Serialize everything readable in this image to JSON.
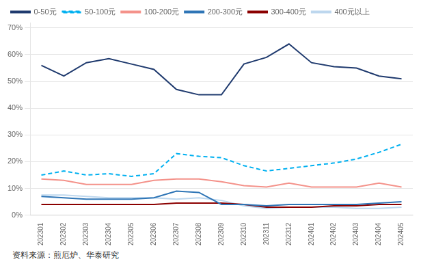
{
  "chart_data": {
    "type": "line",
    "categories": [
      "202301",
      "202302",
      "202303",
      "202304",
      "202305",
      "202306",
      "202307",
      "202308",
      "202309",
      "202310",
      "202311",
      "202312",
      "202401",
      "202402",
      "202403",
      "202404",
      "202405"
    ],
    "series": [
      {
        "name": "0-50元",
        "color": "#1f3a6e",
        "line_style": "solid",
        "values": [
          0.56,
          0.52,
          0.57,
          0.585,
          0.565,
          0.545,
          0.47,
          0.45,
          0.45,
          0.565,
          0.59,
          0.64,
          0.57,
          0.555,
          0.55,
          0.52,
          0.51
        ]
      },
      {
        "name": "50-100元",
        "color": "#00b0f0",
        "line_style": "dashed",
        "values": [
          0.15,
          0.165,
          0.15,
          0.155,
          0.145,
          0.155,
          0.23,
          0.22,
          0.215,
          0.185,
          0.165,
          0.175,
          0.185,
          0.195,
          0.21,
          0.235,
          0.265
        ]
      },
      {
        "name": "100-200元",
        "color": "#f4928a",
        "line_style": "solid",
        "values": [
          0.135,
          0.13,
          0.115,
          0.115,
          0.115,
          0.13,
          0.135,
          0.135,
          0.125,
          0.11,
          0.105,
          0.12,
          0.105,
          0.105,
          0.105,
          0.12,
          0.105
        ]
      },
      {
        "name": "200-300元",
        "color": "#2e75b6",
        "line_style": "solid",
        "values": [
          0.07,
          0.065,
          0.06,
          0.06,
          0.06,
          0.065,
          0.09,
          0.085,
          0.04,
          0.04,
          0.035,
          0.04,
          0.04,
          0.04,
          0.04,
          0.045,
          0.05
        ]
      },
      {
        "name": "300-400元",
        "color": "#8b0000",
        "line_style": "solid",
        "values": [
          0.04,
          0.04,
          0.04,
          0.04,
          0.04,
          0.04,
          0.045,
          0.045,
          0.045,
          0.04,
          0.03,
          0.03,
          0.03,
          0.035,
          0.035,
          0.04,
          0.04
        ]
      },
      {
        "name": "400元以上",
        "color": "#bdd7ee",
        "line_style": "solid",
        "values": [
          0.075,
          0.075,
          0.07,
          0.065,
          0.065,
          0.065,
          0.06,
          0.065,
          0.055,
          0.035,
          0.025,
          0.03,
          0.03,
          0.03,
          0.025,
          0.025,
          0.03
        ]
      }
    ],
    "ylim": [
      0,
      0.72
    ],
    "yticks": [
      {
        "value": 0,
        "label": "0%"
      },
      {
        "value": 0.1,
        "label": "10%"
      },
      {
        "value": 0.2,
        "label": "20%"
      },
      {
        "value": 0.3,
        "label": "30%"
      },
      {
        "value": 0.4,
        "label": "40%"
      },
      {
        "value": 0.5,
        "label": "50%"
      },
      {
        "value": 0.6,
        "label": "60%"
      },
      {
        "value": 0.7,
        "label": "70%"
      }
    ],
    "grid": true,
    "legend": "upper left",
    "annotations": [
      "资料来源：煎厄炉、华泰研究"
    ]
  }
}
